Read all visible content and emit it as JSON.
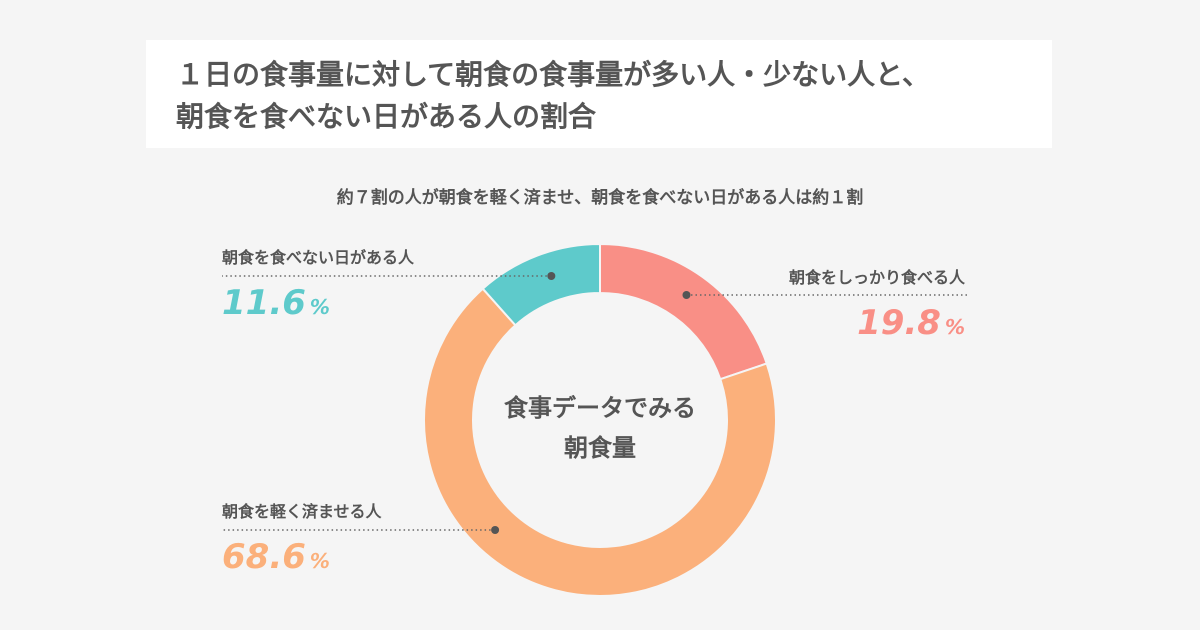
{
  "title": {
    "line1": "１日の食事量に対して朝食の食事量が多い人・少ない人と、",
    "line2": "朝食を食べない日がある人の割合"
  },
  "subtitle": "約７割の人が朝食を軽く済ませ、朝食を食べない日がある人は約１割",
  "center_label": [
    "食事データでみる",
    "朝食量"
  ],
  "percent_unit": "%",
  "chart_data": {
    "type": "pie",
    "variant": "donut",
    "unit": "%",
    "slices": [
      {
        "label": "朝食をしっかり食べる人",
        "value": 19.8,
        "display": "19.8",
        "color": "#f98f86"
      },
      {
        "label": "朝食を軽く済ませる人",
        "value": 68.6,
        "display": "68.6",
        "color": "#fbb07b"
      },
      {
        "label": "朝食を食べない日がある人",
        "value": 11.6,
        "display": "11.6",
        "color": "#5ecacb"
      }
    ]
  }
}
